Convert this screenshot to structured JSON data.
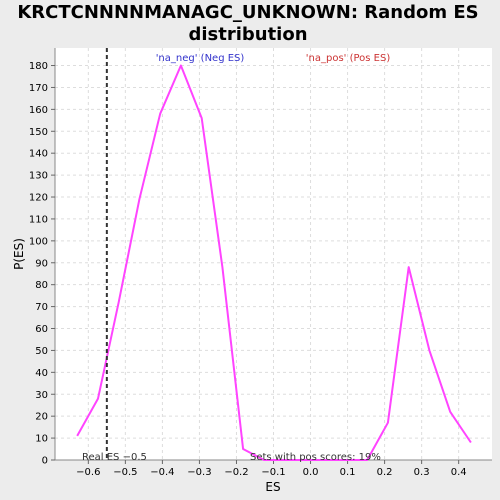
{
  "chart_data": {
    "type": "line",
    "title_line1": "KRCTCNNNNMANAGC_UNKNOWN: Random ES",
    "title_line2": "distribution",
    "xlabel": "ES",
    "ylabel": "P(ES)",
    "xlim": [
      -0.69,
      0.49
    ],
    "ylim": [
      0,
      188
    ],
    "x_ticks": [
      -0.6,
      -0.5,
      -0.4,
      -0.3,
      -0.2,
      -0.1,
      0.0,
      0.1,
      0.2,
      0.3,
      0.4
    ],
    "x_tick_labels": [
      "−0.6",
      "−0.5",
      "−0.4",
      "−0.3",
      "−0.2",
      "−0.1",
      "0.0",
      "0.1",
      "0.2",
      "0.3",
      "0.4"
    ],
    "y_ticks": [
      0,
      10,
      20,
      30,
      40,
      50,
      60,
      70,
      80,
      90,
      100,
      110,
      120,
      130,
      140,
      150,
      160,
      170,
      180
    ],
    "grid": true,
    "series": [
      {
        "color": "#ff44ff",
        "x": [
          -0.63,
          -0.574,
          -0.518,
          -0.462,
          -0.406,
          -0.35,
          -0.294,
          -0.238,
          -0.182,
          -0.126,
          0.153,
          0.209,
          0.265,
          0.321,
          0.377,
          0.433
        ],
        "y": [
          11,
          28,
          72,
          119,
          158,
          180,
          156,
          88,
          5,
          0,
          0,
          17,
          88,
          50,
          22,
          8
        ]
      }
    ],
    "real_es": {
      "x": -0.55,
      "label": "Real ES −0.5"
    },
    "annotations": {
      "neg_label": "'na_neg' (Neg ES)",
      "neg_color": "#3333cc",
      "pos_label": "'na_pos' (Pos ES)",
      "pos_color": "#cc3333",
      "sets_label": "Sets with pos scores: 19%"
    }
  }
}
